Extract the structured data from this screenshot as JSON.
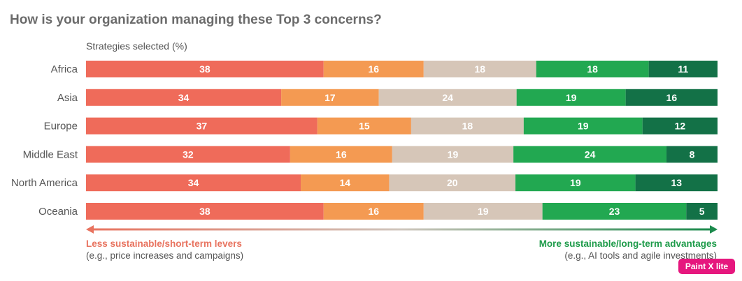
{
  "title": "How is your organization managing these Top 3 concerns?",
  "subtitle": "Strategies selected (%)",
  "legend": {
    "left_head": "Less sustainable/short-term levers",
    "left_sub": "(e.g., price increases and campaigns)",
    "right_head": "More sustainable/long-term advantages",
    "right_sub": "(e.g., AI tools and agile investments)"
  },
  "watermark": "Paint X lite",
  "colors": {
    "segments": [
      "#ef6b5a",
      "#f49a52",
      "#d6c6b8",
      "#22a851",
      "#137147"
    ],
    "arrow_left": "#e8735f",
    "arrow_right": "#1b8a4c"
  },
  "chart_data": {
    "type": "bar",
    "orientation": "horizontal",
    "stacked": true,
    "categories": [
      "Africa",
      "Asia",
      "Europe",
      "Middle East",
      "North America",
      "Oceania"
    ],
    "series": [
      {
        "values": [
          38,
          34,
          37,
          32,
          34,
          38
        ]
      },
      {
        "values": [
          16,
          17,
          15,
          16,
          14,
          16
        ]
      },
      {
        "values": [
          18,
          24,
          18,
          19,
          20,
          19
        ]
      },
      {
        "values": [
          18,
          19,
          19,
          24,
          19,
          23
        ]
      },
      {
        "values": [
          11,
          16,
          12,
          8,
          13,
          5
        ]
      }
    ],
    "title": "How is your organization managing these Top 3 concerns?",
    "ylabel": "Strategies selected (%)"
  }
}
